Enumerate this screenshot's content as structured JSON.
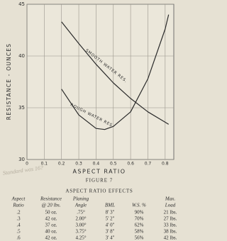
{
  "chart_data": {
    "type": "line",
    "xlabel": "ASPECT RATIO",
    "ylabel": "RESISTANCE - OUNCES",
    "x": [
      0.2,
      0.3,
      0.4,
      0.45,
      0.5,
      0.6,
      0.7,
      0.8,
      0.82
    ],
    "series": [
      {
        "name": "SMOOTH WATER RES.",
        "color": "#2a2a2a",
        "values": [
          43.3,
          41.2,
          39.2,
          38.3,
          37.4,
          35.9,
          34.6,
          33.6,
          33.4
        ]
      },
      {
        "name": "ROUGH WATER RES.",
        "color": "#2a2a2a",
        "values": [
          36.8,
          34.3,
          33.0,
          32.9,
          33.2,
          34.6,
          37.8,
          42.6,
          44.0
        ]
      }
    ],
    "xlim": [
      0,
      0.85
    ],
    "ylim": [
      30,
      45
    ],
    "xticks": [
      0,
      0.1,
      0.2,
      0.3,
      0.4,
      0.5,
      0.6,
      0.7,
      0.8
    ],
    "yticks": [
      30,
      35,
      40,
      45
    ],
    "grid": true
  },
  "handwritten_note": "Standard was 16?",
  "caption": "FIGURE 7",
  "table": {
    "title": "ASPECT RATIO EFFECTS",
    "header": [
      [
        "Aspect",
        "Ratio"
      ],
      [
        "Resistance",
        "@ 20 lbs."
      ],
      [
        "Planing",
        "Angle"
      ],
      [
        "BML"
      ],
      [
        "W.S. %"
      ],
      [
        "Max.",
        "Load"
      ]
    ],
    "rows": [
      [
        ".2",
        "50 oz.",
        ".75°",
        "8' 3\"",
        "90%",
        "21 lbs."
      ],
      [
        ".3",
        "42 oz.",
        "2.00°",
        "5' 2\"",
        "70%",
        "27 lbs."
      ],
      [
        ".4",
        "37 oz.",
        "3.00°",
        "4' 0\"",
        "62%",
        "33 lbs."
      ],
      [
        ".5",
        "40 oz.",
        "3.75°",
        "3' 8\"",
        "58%",
        "38 lbs."
      ],
      [
        ".6",
        "42 oz.",
        "4.25°",
        "3' 4\"",
        "56%",
        "42 lbs."
      ]
    ]
  }
}
